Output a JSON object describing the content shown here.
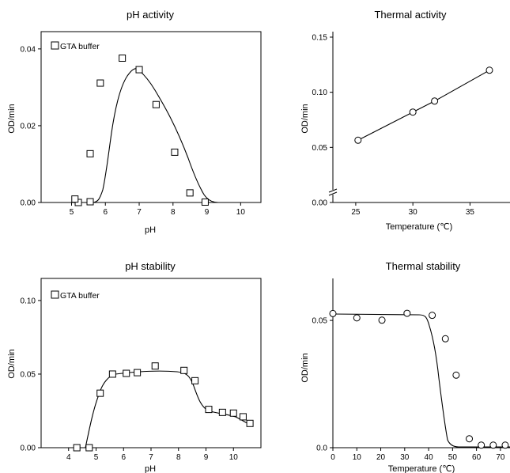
{
  "chart_data": [
    {
      "id": "ph-activity",
      "type": "scatter",
      "title": "pH activity",
      "xlabel": "pH",
      "ylabel": "OD/min",
      "xlim": [
        4.1,
        10.6
      ],
      "ylim": [
        0,
        0.0445
      ],
      "xticks": [
        "5",
        "6",
        "7",
        "8",
        "9",
        "10"
      ],
      "yticks": [
        "0.00",
        "0.02",
        "0.04"
      ],
      "legend": "GTA buffer",
      "legend_position": "top-left",
      "marker": "square",
      "grid": false,
      "series": [
        {
          "name": "GTA buffer",
          "x": [
            5.2,
            5.55,
            5.1,
            5.55,
            5.85,
            6.5,
            7.0,
            7.5,
            8.05,
            8.5,
            8.95
          ],
          "y": [
            0.0,
            0.0002,
            0.0009,
            0.0127,
            0.0311,
            0.0376,
            0.0346,
            0.0255,
            0.0131,
            0.0025,
            0.0001
          ]
        }
      ]
    },
    {
      "id": "thermal-activity",
      "type": "line",
      "title": "Thermal activity",
      "xlabel": "Temperature (℃)",
      "ylabel": "OD/min",
      "xlim": [
        23,
        38.5
      ],
      "ylim": [
        0,
        0.155
      ],
      "xticks": [
        "25",
        "30",
        "35"
      ],
      "yticks": [
        "0.00",
        "0.05",
        "0.10",
        "0.15"
      ],
      "axis_break": true,
      "marker": "circle",
      "grid": false,
      "series": [
        {
          "x": [
            25.2,
            30,
            31.9,
            36.7
          ],
          "y": [
            0.0565,
            0.082,
            0.092,
            0.12
          ]
        }
      ]
    },
    {
      "id": "ph-stability",
      "type": "scatter",
      "title": "pH stability",
      "xlabel": "pH",
      "ylabel": "OD/min",
      "xlim": [
        3.0,
        11.0
      ],
      "ylim": [
        0,
        0.115
      ],
      "xticks": [
        "4",
        "5",
        "6",
        "7",
        "8",
        "9",
        "10"
      ],
      "yticks": [
        "0.00",
        "0.05",
        "0.10"
      ],
      "legend": "GTA buffer",
      "legend_position": "top-left",
      "marker": "square",
      "grid": false,
      "series": [
        {
          "name": "GTA buffer",
          "x": [
            4.3,
            4.75,
            5.15,
            5.6,
            6.1,
            6.5,
            7.15,
            8.2,
            8.6,
            9.1,
            9.6,
            10.0,
            10.35,
            10.6
          ],
          "y": [
            0.0,
            0.0,
            0.037,
            0.05,
            0.0505,
            0.051,
            0.0555,
            0.0525,
            0.0455,
            0.026,
            0.024,
            0.0235,
            0.021,
            0.0165
          ]
        }
      ]
    },
    {
      "id": "thermal-stability",
      "type": "line",
      "title": "Thermal stability",
      "xlabel": "Temperature (℃)",
      "ylabel": "OD/min",
      "xlim": [
        0,
        74
      ],
      "ylim": [
        0,
        0.0665
      ],
      "xticks": [
        "0",
        "10",
        "20",
        "30",
        "40",
        "50",
        "60",
        "70"
      ],
      "yticks": [
        "0.0",
        "0.05"
      ],
      "marker": "circle",
      "grid": false,
      "series": [
        {
          "x": [
            0,
            10,
            20.5,
            31,
            41.5,
            47,
            51.5,
            57,
            62,
            67,
            72
          ],
          "y": [
            0.0527,
            0.051,
            0.0501,
            0.0528,
            0.052,
            0.0428,
            0.0285,
            0.0035,
            0.001,
            0.001,
            0.001
          ]
        }
      ]
    }
  ]
}
